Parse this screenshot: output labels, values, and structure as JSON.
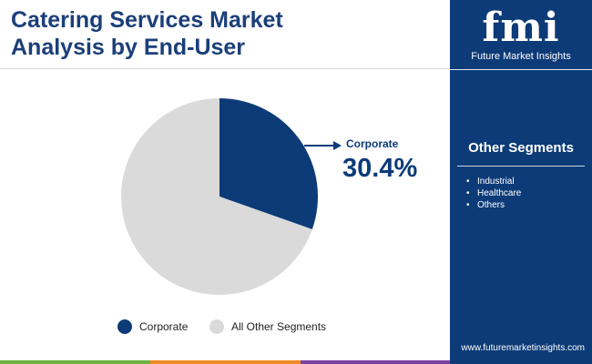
{
  "header": {
    "title_line1": "Catering Services Market",
    "title_line2": "Analysis by End-User"
  },
  "brand": {
    "logo_mark": "fmi",
    "logo_text": "Future Market Insights",
    "website": "www.futuremarketinsights.com"
  },
  "sidebar": {
    "title": "Other Segments",
    "items": [
      "Industrial",
      "Healthcare",
      "Others"
    ]
  },
  "colors": {
    "corporate": "#0c3b78",
    "others": "#dadada",
    "title": "#1b3f7a",
    "sidebar_bg": "#0c3b78"
  },
  "chart_data": {
    "type": "pie",
    "slices": [
      {
        "label": "Corporate",
        "value": 30.4,
        "color": "#0c3b78"
      },
      {
        "label": "All Other Segments",
        "value": 69.6,
        "color": "#dadada"
      }
    ],
    "callout": {
      "label": "Corporate",
      "value_text": "30.4%"
    },
    "legend": {
      "placement": "bottom",
      "entries": [
        "Corporate",
        "All Other Segments"
      ]
    }
  }
}
